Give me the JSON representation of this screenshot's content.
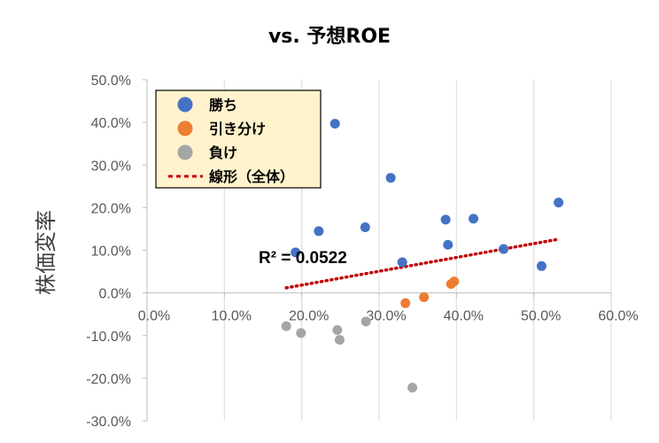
{
  "chart_data": {
    "type": "scatter",
    "title": "vs. 予想ROE",
    "xlabel": "",
    "ylabel": "株価変率",
    "xlim": [
      0,
      0.6
    ],
    "ylim": [
      -0.3,
      0.5
    ],
    "x_ticks": [
      0,
      0.1,
      0.2,
      0.3,
      0.4,
      0.5,
      0.6
    ],
    "x_tick_labels": [
      "0.0%",
      "10.0%",
      "20.0%",
      "30.0%",
      "40.0%",
      "50.0%",
      "60.0%"
    ],
    "y_ticks": [
      0.5,
      0.4,
      0.3,
      0.2,
      0.1,
      0,
      -0.1,
      -0.2,
      -0.3
    ],
    "y_tick_labels": [
      "50.0%",
      "40.0%",
      "30.0%",
      "20.0%",
      "10.0%",
      "0.0%",
      "-10.0%",
      "-20.0%",
      "-30.0%"
    ],
    "grid": "vertical",
    "legend_position": "top-left",
    "series": [
      {
        "name": "勝ち",
        "color": "#4472C4",
        "points": [
          [
            0.192,
            0.095
          ],
          [
            0.222,
            0.145
          ],
          [
            0.243,
            0.397
          ],
          [
            0.282,
            0.154
          ],
          [
            0.315,
            0.27
          ],
          [
            0.33,
            0.072
          ],
          [
            0.386,
            0.172
          ],
          [
            0.389,
            0.113
          ],
          [
            0.422,
            0.174
          ],
          [
            0.461,
            0.103
          ],
          [
            0.51,
            0.063
          ],
          [
            0.532,
            0.212
          ]
        ]
      },
      {
        "name": "引き分け",
        "color": "#ED7D31",
        "points": [
          [
            0.334,
            -0.024
          ],
          [
            0.358,
            -0.01
          ],
          [
            0.393,
            0.021
          ],
          [
            0.397,
            0.027
          ]
        ]
      },
      {
        "name": "負け",
        "color": "#A5A5A5",
        "points": [
          [
            0.18,
            -0.078
          ],
          [
            0.199,
            -0.094
          ],
          [
            0.246,
            -0.087
          ],
          [
            0.249,
            -0.11
          ],
          [
            0.283,
            -0.067
          ],
          [
            0.343,
            -0.222
          ]
        ]
      }
    ],
    "trendline": {
      "name": "線形（全体）",
      "color": "#C00000",
      "from": [
        0.18,
        0.012
      ],
      "to": [
        0.532,
        0.126
      ],
      "r2_label": "R² = 0.0522"
    }
  }
}
